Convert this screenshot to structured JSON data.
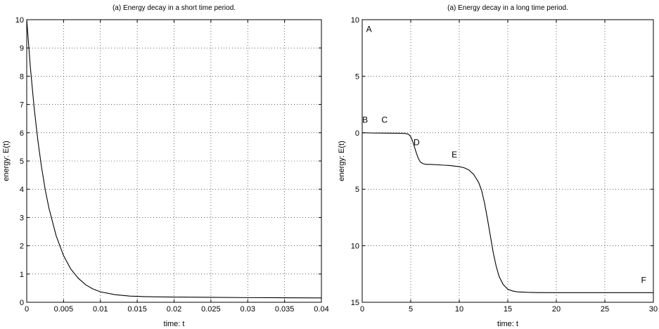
{
  "chart_data": [
    {
      "type": "line",
      "title": "(a) Energy decay in a short time period.",
      "xlabel": "time: t",
      "ylabel": "energy: E(t)",
      "xlim": [
        0,
        0.04
      ],
      "ylim": [
        0,
        10
      ],
      "y_inverted": false,
      "grid": true,
      "xticks": [
        "0",
        "0.005",
        "0.01",
        "0.015",
        "0.02",
        "0.025",
        "0.03",
        "0.035",
        "0.04"
      ],
      "yticks": [
        "0",
        "1",
        "2",
        "3",
        "4",
        "5",
        "6",
        "7",
        "8",
        "9",
        "10"
      ],
      "series": [
        {
          "x": [
            0,
            0.0005,
            0.001,
            0.0015,
            0.002,
            0.0025,
            0.003,
            0.004,
            0.005,
            0.006,
            0.007,
            0.008,
            0.009,
            0.01,
            0.012,
            0.014,
            0.016,
            0.018,
            0.02,
            0.025,
            0.03,
            0.035,
            0.04
          ],
          "values": [
            10,
            8.3,
            6.9,
            5.75,
            4.8,
            4.0,
            3.35,
            2.35,
            1.65,
            1.17,
            0.85,
            0.62,
            0.47,
            0.37,
            0.27,
            0.22,
            0.2,
            0.19,
            0.185,
            0.175,
            0.165,
            0.16,
            0.155
          ]
        }
      ],
      "annotations": []
    },
    {
      "type": "line",
      "title": "(a) Energy decay in a long time period.",
      "xlabel": "time: t",
      "ylabel": "energy: E(t)",
      "xlim": [
        0,
        30
      ],
      "ylim": [
        -10,
        15
      ],
      "y_inverted": true,
      "grid": true,
      "xticks": [
        "0",
        "5",
        "10",
        "15",
        "20",
        "25",
        "30"
      ],
      "ytick_values": [
        -10,
        -5,
        0,
        5,
        10,
        15
      ],
      "yticks": [
        "10",
        "5",
        "0",
        "5",
        "10",
        "15"
      ],
      "series": [
        {
          "x": [
            0,
            1,
            2,
            3,
            4,
            4.5,
            4.8,
            5.0,
            5.2,
            5.4,
            5.6,
            5.8,
            6.0,
            6.3,
            6.6,
            7,
            8,
            9,
            10,
            10.5,
            11,
            11.5,
            12,
            12.3,
            12.6,
            12.9,
            13.2,
            13.5,
            13.8,
            14.1,
            14.5,
            15,
            15.5,
            16,
            17,
            18,
            20,
            22,
            25,
            28,
            30
          ],
          "values": [
            0,
            0.02,
            0.03,
            0.04,
            0.05,
            0.07,
            0.15,
            0.35,
            0.75,
            1.3,
            1.85,
            2.3,
            2.6,
            2.75,
            2.8,
            2.8,
            2.85,
            2.9,
            3.0,
            3.1,
            3.3,
            3.7,
            4.4,
            5.1,
            6.2,
            7.6,
            9.1,
            10.6,
            11.8,
            12.7,
            13.4,
            13.85,
            14.0,
            14.08,
            14.12,
            14.14,
            14.15,
            14.15,
            14.15,
            14.15,
            14.15
          ]
        }
      ],
      "annotations": [
        {
          "text": "A",
          "x": 0.7,
          "y": -8.9
        },
        {
          "text": "B",
          "x": 0.3,
          "y": -0.9
        },
        {
          "text": "C",
          "x": 2.3,
          "y": -0.9
        },
        {
          "text": "D",
          "x": 5.6,
          "y": 1.1
        },
        {
          "text": "E",
          "x": 9.5,
          "y": 2.2
        },
        {
          "text": "F",
          "x": 29,
          "y": 13.3
        }
      ]
    }
  ]
}
